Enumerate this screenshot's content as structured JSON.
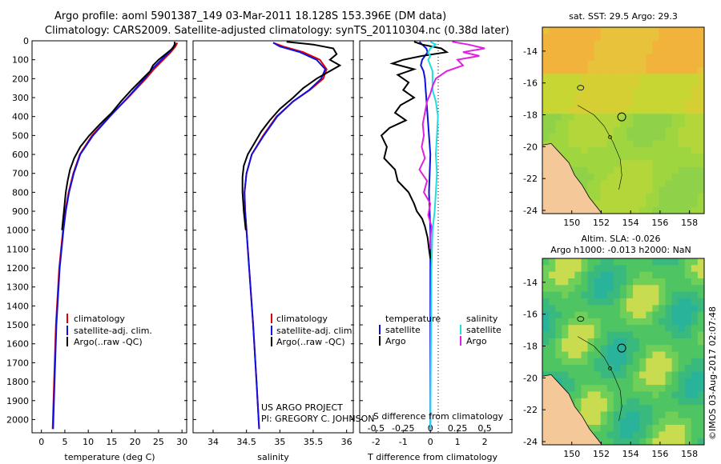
{
  "header": {
    "title_line1": "Argo profile: aoml 5901387_149 03-Mar-2011 18.128S 153.396E (DM data)",
    "title_line2": "Climatology: CARS2009. Satellite-adjusted climatology: synTS_20110304.nc (0.38d later)"
  },
  "colors": {
    "climatology": "#e00000",
    "satellite": "#1010e0",
    "argo": "#000000",
    "salinity_sat": "#22dddd",
    "salinity_argo": "#e020e0",
    "land": "#f5c89a"
  },
  "depth_ticks": [
    "0",
    "100",
    "200",
    "300",
    "400",
    "500",
    "600",
    "700",
    "800",
    "900",
    "1000",
    "1100",
    "1200",
    "1300",
    "1400",
    "1500",
    "1600",
    "1700",
    "1800",
    "1900",
    "2000"
  ],
  "chart_data": [
    {
      "type": "line",
      "name": "temperature-profile",
      "xlabel": "temperature (deg C)",
      "xlim": [
        -2,
        31
      ],
      "ylim": [
        2070,
        0
      ],
      "xticks": [
        "0",
        "5",
        "10",
        "15",
        "20",
        "25",
        "30"
      ],
      "legend": [
        "climatology",
        "satellite-adj. clim.",
        "Argo(..raw -QC)"
      ],
      "series": [
        {
          "name": "climatology",
          "depth": [
            10,
            30,
            60,
            100,
            150,
            200,
            300,
            400,
            500,
            600,
            700,
            800,
            900,
            1000,
            1200,
            1500,
            1800,
            2050
          ],
          "values": [
            29.0,
            28.6,
            27.6,
            26.0,
            24.0,
            22.3,
            18.5,
            14.5,
            10.8,
            8.2,
            6.8,
            5.8,
            5.1,
            4.6,
            3.8,
            3.1,
            2.7,
            2.4
          ]
        },
        {
          "name": "satellite-adj. clim.",
          "depth": [
            10,
            30,
            60,
            100,
            150,
            200,
            300,
            400,
            500,
            600,
            700,
            800,
            900,
            1000,
            1200,
            1500,
            1800,
            2050
          ],
          "values": [
            28.6,
            28.2,
            27.3,
            25.6,
            23.6,
            22.0,
            18.4,
            14.6,
            11.0,
            8.3,
            6.9,
            5.9,
            5.2,
            4.7,
            3.9,
            3.2,
            2.8,
            2.5
          ]
        },
        {
          "name": "Argo(..raw -QC)",
          "depth": [
            5,
            20,
            40,
            70,
            100,
            130,
            160,
            200,
            260,
            320,
            380,
            440,
            500,
            560,
            620,
            680,
            740,
            800,
            900,
            1000
          ],
          "values": [
            28.4,
            28.5,
            28.0,
            26.5,
            25.0,
            23.8,
            23.2,
            21.6,
            19.2,
            17.0,
            15.0,
            12.5,
            10.2,
            8.3,
            7.0,
            6.1,
            5.6,
            5.2,
            4.8,
            4.4
          ]
        }
      ]
    },
    {
      "type": "line",
      "name": "salinity-profile",
      "xlabel": "salinity",
      "xlim": [
        33.7,
        36.1
      ],
      "ylim": [
        2070,
        0
      ],
      "xticks": [
        "34",
        "34.5",
        "35",
        "35.5",
        "36"
      ],
      "legend": [
        "climatology",
        "satellite-adj. clim.",
        "Argo(..raw -QC)"
      ],
      "annotation": [
        "US ARGO PROJECT",
        "PI: GREGORY C. JOHNSON"
      ],
      "series": [
        {
          "name": "climatology",
          "depth": [
            10,
            30,
            60,
            100,
            150,
            200,
            260,
            320,
            400,
            500,
            600,
            700,
            800,
            900,
            1000,
            1200,
            1500,
            1800,
            2050
          ],
          "values": [
            34.9,
            35.05,
            35.35,
            35.6,
            35.7,
            35.65,
            35.45,
            35.2,
            34.95,
            34.75,
            34.58,
            34.5,
            34.47,
            34.48,
            34.5,
            34.54,
            34.6,
            34.65,
            34.69
          ]
        },
        {
          "name": "satellite-adj. clim.",
          "depth": [
            10,
            30,
            60,
            100,
            150,
            200,
            260,
            320,
            400,
            500,
            600,
            700,
            800,
            900,
            1000,
            1200,
            1500,
            1800,
            2050
          ],
          "values": [
            34.9,
            35.0,
            35.3,
            35.55,
            35.68,
            35.62,
            35.44,
            35.2,
            34.96,
            34.76,
            34.58,
            34.5,
            34.47,
            34.48,
            34.5,
            34.54,
            34.6,
            34.65,
            34.69
          ]
        },
        {
          "name": "Argo(..raw -QC)",
          "depth": [
            5,
            20,
            40,
            70,
            100,
            130,
            160,
            200,
            250,
            300,
            360,
            420,
            480,
            540,
            600,
            660,
            720,
            800,
            900,
            1000
          ],
          "values": [
            35.1,
            35.5,
            35.8,
            35.85,
            35.75,
            35.9,
            35.75,
            35.55,
            35.35,
            35.2,
            35.0,
            34.85,
            34.72,
            34.62,
            34.52,
            34.46,
            34.44,
            34.44,
            34.46,
            34.49
          ]
        }
      ]
    },
    {
      "type": "line",
      "name": "difference-profile",
      "xlabel": "T difference from climatology",
      "xlabel_top": "S difference from climatology",
      "xlim": [
        -2.6,
        3.0
      ],
      "ylim": [
        2070,
        0
      ],
      "xticks": [
        "-2",
        "-1",
        "0",
        "1",
        "2"
      ],
      "xticks_top": [
        "-0.5",
        "-0.25",
        "0",
        "0.25",
        "0.5"
      ],
      "legend_temperature": [
        "temperature",
        "satellite",
        "Argo"
      ],
      "legend_salinity": [
        "salinity",
        "satellite",
        "Argo"
      ],
      "series": [
        {
          "name": "temperature satellite",
          "depth": [
            5,
            20,
            40,
            60,
            80,
            100,
            130,
            160,
            200,
            300,
            400,
            500,
            600,
            800,
            1000,
            1200,
            2050
          ],
          "values": [
            -0.4,
            -0.3,
            -0.15,
            -0.1,
            -0.2,
            -0.3,
            -0.35,
            -0.25,
            -0.2,
            -0.15,
            -0.1,
            -0.05,
            0.0,
            -0.05,
            0.0,
            0.0,
            0.0
          ]
        },
        {
          "name": "temperature Argo",
          "depth": [
            5,
            20,
            40,
            60,
            80,
            100,
            120,
            150,
            180,
            220,
            260,
            300,
            340,
            380,
            420,
            460,
            500,
            560,
            620,
            680,
            740,
            800,
            860,
            900,
            940,
            980,
            1040,
            1100,
            1150
          ],
          "values": [
            -0.6,
            -0.3,
            0.4,
            0.6,
            -0.3,
            -1.0,
            -1.4,
            -0.6,
            -1.2,
            -0.8,
            -1.0,
            -0.6,
            -1.1,
            -1.3,
            -0.9,
            -1.5,
            -1.8,
            -1.6,
            -1.7,
            -1.3,
            -1.2,
            -0.8,
            -0.6,
            -0.5,
            -0.3,
            -0.2,
            -0.1,
            -0.05,
            0.0
          ]
        },
        {
          "name": "salinity satellite",
          "depth": [
            5,
            20,
            40,
            60,
            80,
            100,
            130,
            160,
            200,
            260,
            320,
            400,
            500,
            600,
            700,
            800,
            900,
            1000,
            1200,
            2050
          ],
          "values": [
            0.0,
            0.05,
            0.0,
            -0.02,
            0.0,
            -0.02,
            0.0,
            0.02,
            0.02,
            0.02,
            0.05,
            0.07,
            0.06,
            0.05,
            0.06,
            0.05,
            0.04,
            0.02,
            0.01,
            0.0
          ]
        },
        {
          "name": "salinity Argo",
          "depth": [
            5,
            20,
            40,
            60,
            80,
            100,
            130,
            160,
            200,
            240,
            280,
            320,
            380,
            440,
            500,
            560,
            620,
            680,
            740,
            800,
            860,
            920,
            980,
            1040,
            1100
          ],
          "values": [
            0.2,
            0.35,
            0.5,
            0.3,
            0.45,
            0.25,
            0.3,
            0.15,
            0.05,
            0.02,
            0.0,
            -0.03,
            -0.05,
            -0.07,
            -0.06,
            -0.08,
            -0.05,
            -0.1,
            -0.03,
            -0.06,
            0.0,
            -0.02,
            0.01,
            0.0,
            0.0
          ]
        }
      ]
    },
    {
      "type": "heatmap",
      "name": "sst-map",
      "title": "sat. SST: 29.5  Argo: 29.3",
      "xticks": [
        "150",
        "152",
        "154",
        "156",
        "158"
      ],
      "yticks": [
        "-14",
        "-16",
        "-18",
        "-20",
        "-22",
        "-24"
      ],
      "xlim": [
        148,
        159
      ],
      "ylim": [
        -24.2,
        -12.5
      ],
      "marker": {
        "lon": 153.396,
        "lat": -18.128
      }
    },
    {
      "type": "heatmap",
      "name": "sla-map",
      "title": "Altim. SLA: -0.026",
      "subtitle": "Argo h1000: -0.013  h2000: NaN",
      "xticks": [
        "150",
        "152",
        "154",
        "156",
        "158"
      ],
      "yticks": [
        "-14",
        "-16",
        "-18",
        "-20",
        "-22",
        "-24"
      ],
      "xlim": [
        148,
        159
      ],
      "ylim": [
        -24.2,
        -12.5
      ],
      "marker": {
        "lon": 153.396,
        "lat": -18.128
      }
    }
  ],
  "watermark": "©IMOS 03-Aug-2017 02:07:48"
}
